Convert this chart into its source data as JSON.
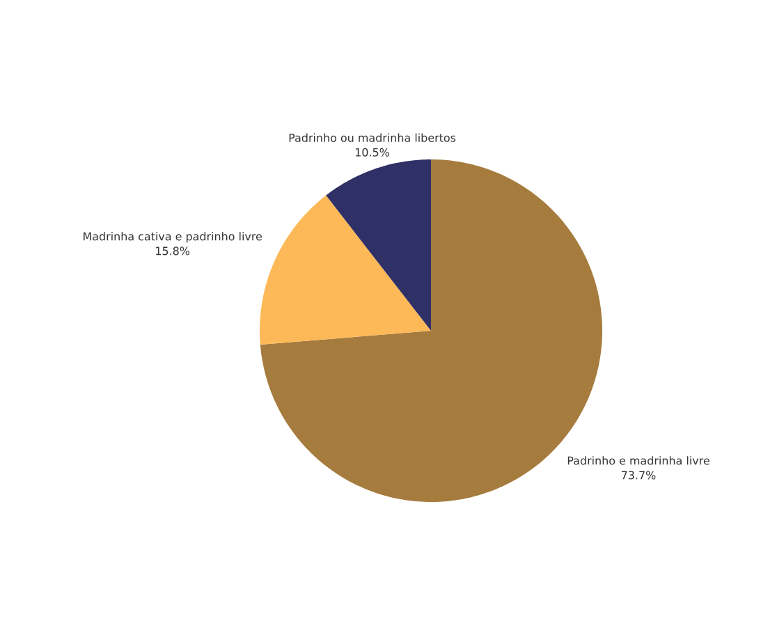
{
  "chart_data": {
    "type": "pie",
    "categories": [
      "Padrinho e madrinha livre",
      "Madrinha cativa e padrinho livre",
      "Padrinho ou madrinha libertos"
    ],
    "values": [
      73.7,
      15.8,
      10.5
    ],
    "colors": [
      "#a67c3e",
      "#fdb958",
      "#2e3066"
    ],
    "value_labels": [
      "73.7%",
      "15.8%",
      "10.5%"
    ]
  }
}
